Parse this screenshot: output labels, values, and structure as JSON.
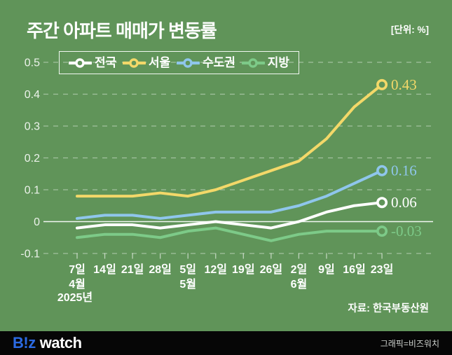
{
  "header": {
    "title": "주간 아파트 매매가 변동률",
    "unit": "[단위: %]"
  },
  "source": "자료: 한국부동산원",
  "footer": {
    "logo_biz": "B!z",
    "logo_watch": "watch",
    "credit": "그래픽=비즈워치"
  },
  "colors": {
    "background": "#609459",
    "footer_background": "#060606",
    "logo_blue": "#2b6ae2",
    "grid": "rgba(255,255,255,0.42)",
    "zero_line": "rgba(255,255,255,0.92)",
    "axis_text": "rgba(255,255,255,0.88)",
    "tick": "rgba(255,255,255,0.6)"
  },
  "chart_data": {
    "type": "line",
    "title": "주간 아파트 매매가 변동률",
    "unit": "%",
    "ylim": [
      -0.1,
      0.5
    ],
    "grid": "horizontal-dashed",
    "legend_position": "top",
    "x_tick_labels": [
      "7일",
      "14일",
      "21일",
      "28일",
      "5일",
      "12일",
      "19일",
      "26일",
      "2일",
      "9일",
      "16일",
      "23일"
    ],
    "month_labels": [
      {
        "index": 0,
        "label": "4월"
      },
      {
        "index": 4,
        "label": "5월"
      },
      {
        "index": 8,
        "label": "6월"
      }
    ],
    "year_label": {
      "index": 0,
      "label": "2025년"
    },
    "y_ticks": [
      {
        "label": "0.5",
        "value": 0.5
      },
      {
        "label": "0.4",
        "value": 0.4
      },
      {
        "label": "0.3",
        "value": 0.3
      },
      {
        "label": "0.2",
        "value": 0.2
      },
      {
        "label": "0.1",
        "value": 0.1
      },
      {
        "label": "0",
        "value": 0.0
      },
      {
        "label": "-0.1",
        "value": -0.1
      }
    ],
    "series": [
      {
        "name": "전국",
        "color": "#ffffff",
        "end_label": "0.06",
        "values": [
          -0.02,
          -0.01,
          -0.01,
          -0.02,
          -0.01,
          0.0,
          -0.01,
          -0.02,
          0.0,
          0.03,
          0.05,
          0.06
        ]
      },
      {
        "name": "서울",
        "color": "#f3d869",
        "end_label": "0.43",
        "values": [
          0.08,
          0.08,
          0.08,
          0.09,
          0.08,
          0.1,
          0.13,
          0.16,
          0.19,
          0.26,
          0.36,
          0.43
        ]
      },
      {
        "name": "수도권",
        "color": "#8fc6ec",
        "end_label": "0.16",
        "values": [
          0.01,
          0.02,
          0.02,
          0.01,
          0.02,
          0.03,
          0.03,
          0.03,
          0.05,
          0.08,
          0.12,
          0.16
        ]
      },
      {
        "name": "지방",
        "color": "#7dca88",
        "end_label": "-0.03",
        "values": [
          -0.05,
          -0.04,
          -0.04,
          -0.05,
          -0.03,
          -0.02,
          -0.04,
          -0.06,
          -0.04,
          -0.03,
          -0.03,
          -0.03
        ]
      }
    ]
  }
}
